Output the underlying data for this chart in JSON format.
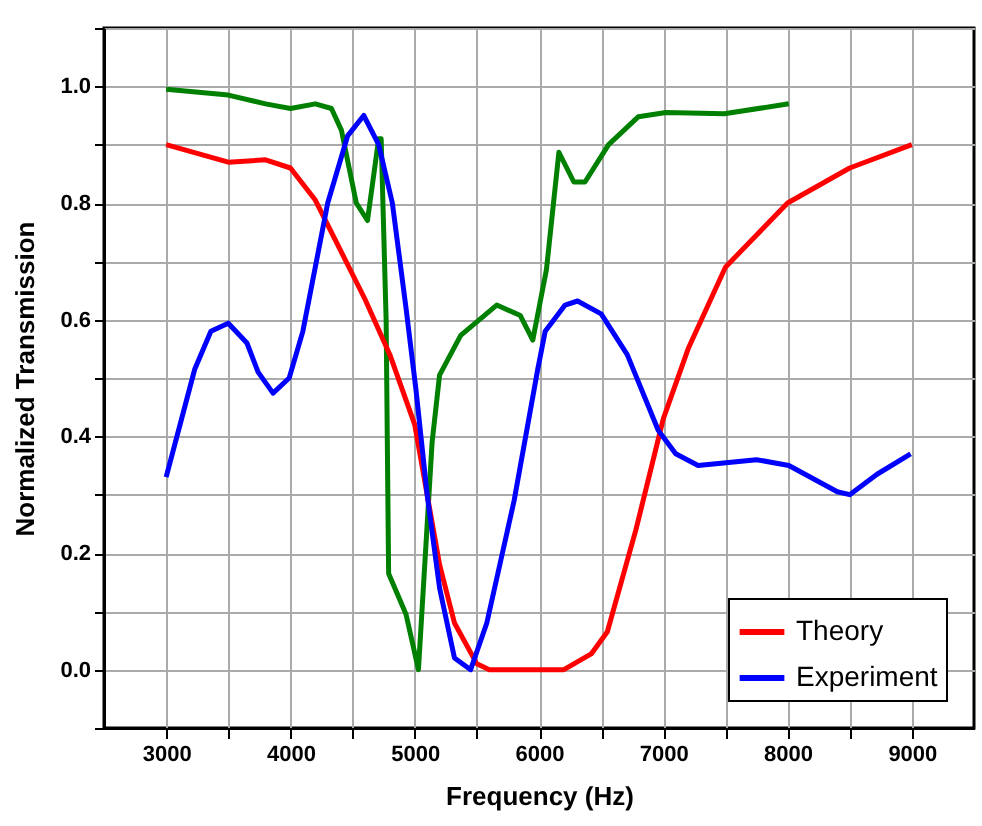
{
  "chart_data": {
    "type": "line",
    "xlabel": "Frequency (Hz)",
    "ylabel": "Normalized Transmission",
    "xlim": [
      2500,
      9500
    ],
    "ylim": [
      -0.1,
      1.1
    ],
    "xticks": [
      3000,
      {
        "value": 3500,
        "label": null
      },
      4000,
      {
        "value": 4500,
        "label": null
      },
      5000,
      {
        "value": 5500,
        "label": null
      },
      6000,
      {
        "value": 6500,
        "label": null
      },
      7000,
      {
        "value": 7500,
        "label": null
      },
      8000,
      {
        "value": 8500,
        "label": null
      },
      9000
    ],
    "yticks": [
      {
        "value": -0.1,
        "label": null
      },
      {
        "value": 0,
        "label": "0.0"
      },
      {
        "value": 0.1,
        "label": null
      },
      {
        "value": 0.2,
        "label": "0.2"
      },
      {
        "value": 0.3,
        "label": null
      },
      {
        "value": 0.4,
        "label": "0.4"
      },
      {
        "value": 0.5,
        "label": null
      },
      {
        "value": 0.6,
        "label": "0.6"
      },
      {
        "value": 0.7,
        "label": null
      },
      {
        "value": 0.8,
        "label": "0.8"
      },
      {
        "value": 0.9,
        "label": null
      },
      {
        "value": 1,
        "label": "1.0"
      },
      {
        "value": 1.1,
        "label": null
      }
    ],
    "grid": true,
    "legend": "bottom right",
    "series": [
      {
        "color": "#008000",
        "x": [
          3000,
          3500,
          3800,
          4000,
          4200,
          4330,
          4410,
          4530,
          4620,
          4710,
          4730,
          4770,
          4790,
          4930,
          5030,
          5140,
          5200,
          5370,
          5660,
          5850,
          5950,
          6060,
          6160,
          6280,
          6370,
          6560,
          6800,
          7020,
          7490,
          8010
        ],
        "values": [
          0.995,
          0.985,
          0.97,
          0.962,
          0.97,
          0.962,
          0.925,
          0.8,
          0.77,
          0.91,
          0.91,
          0.6,
          0.165,
          0.095,
          0,
          0.39,
          0.505,
          0.573,
          0.625,
          0.607,
          0.565,
          0.686,
          0.887,
          0.836,
          0.836,
          0.9,
          0.948,
          0.955,
          0.953,
          0.97
        ]
      },
      {
        "name": "Theory",
        "color": "#ff0000",
        "x": [
          3000,
          3500,
          3800,
          4000,
          4200,
          4400,
          4600,
          4800,
          4900,
          5000,
          5100,
          5200,
          5320,
          5500,
          5600,
          6200,
          6420,
          6550,
          6780,
          7000,
          7200,
          7500,
          8000,
          8500,
          9000
        ],
        "values": [
          0.9,
          0.87,
          0.874,
          0.86,
          0.805,
          0.72,
          0.635,
          0.54,
          0.48,
          0.42,
          0.3,
          0.18,
          0.08,
          0.01,
          0,
          0,
          0.027,
          0.065,
          0.24,
          0.43,
          0.55,
          0.69,
          0.8,
          0.86,
          0.9
        ]
      },
      {
        "name": "Experiment",
        "color": "#0000ff",
        "x": [
          3000,
          3230,
          3360,
          3500,
          3650,
          3740,
          3860,
          3990,
          4100,
          4300,
          4460,
          4590,
          4710,
          4820,
          4930,
          5010,
          5100,
          5200,
          5320,
          5450,
          5580,
          5800,
          5990,
          6050,
          6210,
          6310,
          6500,
          6710,
          6960,
          7100,
          7280,
          7750,
          8010,
          8400,
          8500,
          8720,
          8990
        ],
        "values": [
          0.33,
          0.515,
          0.58,
          0.594,
          0.56,
          0.51,
          0.474,
          0.5,
          0.58,
          0.8,
          0.915,
          0.95,
          0.9,
          0.8,
          0.62,
          0.48,
          0.3,
          0.14,
          0.02,
          0,
          0.08,
          0.29,
          0.515,
          0.58,
          0.625,
          0.632,
          0.61,
          0.54,
          0.41,
          0.37,
          0.35,
          0.36,
          0.35,
          0.305,
          0.3,
          0.335,
          0.37
        ]
      }
    ]
  }
}
